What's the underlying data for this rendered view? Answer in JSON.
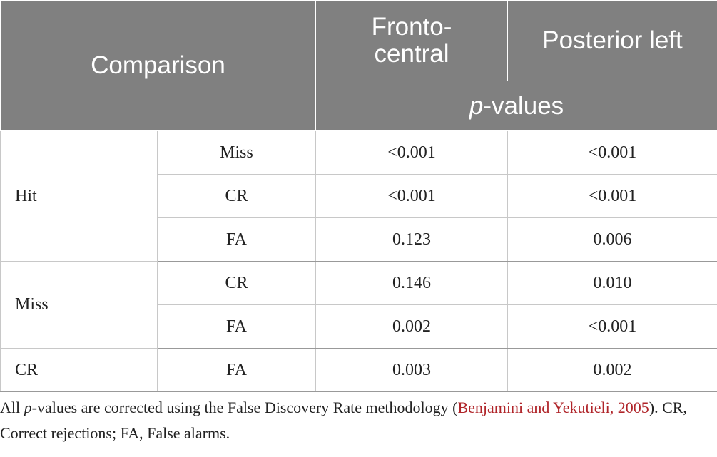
{
  "table": {
    "header": {
      "comparison": "Comparison",
      "columns": [
        "Fronto-central",
        "Posterior left"
      ],
      "subheader": {
        "italic": "p",
        "text": "-values"
      }
    },
    "groups": [
      {
        "label": "Hit",
        "rows": [
          [
            "Miss",
            "<0.001",
            "<0.001"
          ],
          [
            "CR",
            "<0.001",
            "<0.001"
          ],
          [
            "FA",
            "0.123",
            "0.006"
          ]
        ]
      },
      {
        "label": "Miss",
        "rows": [
          [
            "CR",
            "0.146",
            "0.010"
          ],
          [
            "FA",
            "0.002",
            "<0.001"
          ]
        ]
      },
      {
        "label": "CR",
        "rows": [
          [
            "FA",
            "0.003",
            "0.002"
          ]
        ]
      }
    ]
  },
  "footnote": {
    "parts": [
      "All ",
      "p",
      "-values are corrected using the False Discovery Rate methodology (",
      "Benjamini and Yekutieli, 2005",
      "). CR, Correct rejections; FA, False alarms."
    ]
  }
}
